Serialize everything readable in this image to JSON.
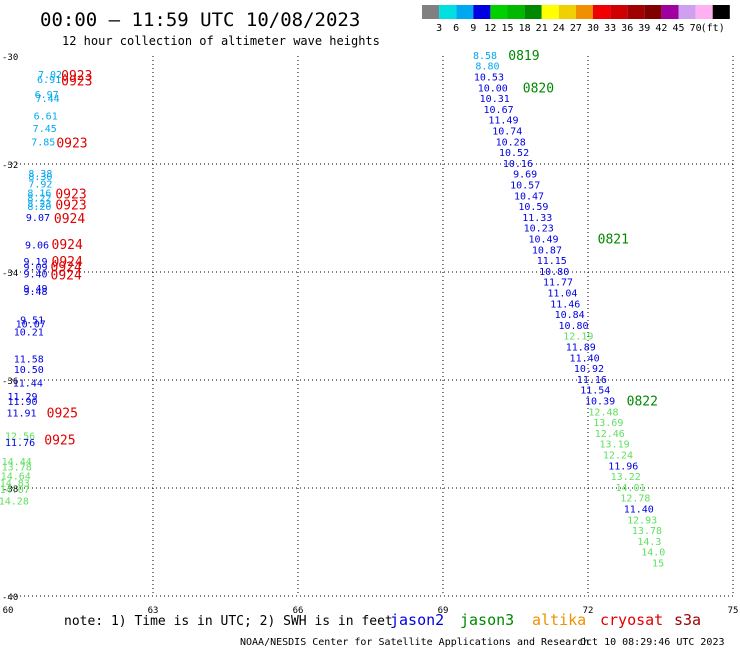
{
  "header": {
    "title": "00:00 – 11:59 UTC 10/08/2023",
    "subtitle": "12 hour collection of altimeter wave heights"
  },
  "legend": {
    "labels": [
      "3",
      "6",
      "9",
      "12",
      "15",
      "18",
      "21",
      "24",
      "27",
      "30",
      "33",
      "36",
      "39",
      "42",
      "45",
      "70",
      "(ft)"
    ],
    "colors": [
      "#808080",
      "#00e0e0",
      "#00a8f0",
      "#0000e0",
      "#00d000",
      "#00b800",
      "#008800",
      "#ffff00",
      "#f0d000",
      "#f09000",
      "#f00000",
      "#d00000",
      "#a00000",
      "#800000",
      "#a000a0",
      "#d0a0f0",
      "#ffb0f0",
      "#000000"
    ]
  },
  "axes": {
    "lon_labels": [
      "60",
      "63",
      "66",
      "69",
      "72",
      "75"
    ],
    "lat_labels": [
      "-30",
      "-32",
      "-34",
      "-36",
      "-38",
      "-40"
    ]
  },
  "wave_labels": [
    {
      "v": "7.02",
      "lon": 60.87,
      "lat": -30.33,
      "c": "#00a8f0"
    },
    {
      "v": "6.91",
      "lon": 60.85,
      "lat": -30.43,
      "c": "#00a8f0"
    },
    {
      "v": "6.97",
      "lon": 60.8,
      "lat": -30.7,
      "c": "#00a8f0"
    },
    {
      "v": "7.44",
      "lon": 60.82,
      "lat": -30.78,
      "c": "#00a8f0"
    },
    {
      "v": "6.61",
      "lon": 60.78,
      "lat": -31.1,
      "c": "#00a8f0"
    },
    {
      "v": "7.45",
      "lon": 60.76,
      "lat": -31.33,
      "c": "#00a8f0"
    },
    {
      "v": "7.85",
      "lon": 60.73,
      "lat": -31.58,
      "c": "#00a8f0"
    },
    {
      "v": "8.38",
      "lon": 60.67,
      "lat": -32.17,
      "c": "#00a8f0"
    },
    {
      "v": "8.30",
      "lon": 60.67,
      "lat": -32.22,
      "c": "#00a8f0"
    },
    {
      "v": "7.92",
      "lon": 60.67,
      "lat": -32.36,
      "c": "#00a8f0"
    },
    {
      "v": "8.16",
      "lon": 60.65,
      "lat": -32.53,
      "c": "#00a8f0"
    },
    {
      "v": "8.22",
      "lon": 60.65,
      "lat": -32.62,
      "c": "#00a8f0"
    },
    {
      "v": "8.23",
      "lon": 60.65,
      "lat": -32.72,
      "c": "#00a8f0"
    },
    {
      "v": "8.20",
      "lon": 60.65,
      "lat": -32.78,
      "c": "#00a8f0"
    },
    {
      "v": "9.07",
      "lon": 60.62,
      "lat": -32.98,
      "c": "#0000e0"
    },
    {
      "v": "9.06",
      "lon": 60.6,
      "lat": -33.49,
      "c": "#0000e0"
    },
    {
      "v": "9.19",
      "lon": 60.57,
      "lat": -33.8,
      "c": "#0000e0"
    },
    {
      "v": "9.09",
      "lon": 60.57,
      "lat": -33.9,
      "c": "#0000e0"
    },
    {
      "v": "9.40",
      "lon": 60.57,
      "lat": -34.03,
      "c": "#0000e0"
    },
    {
      "v": "9.49",
      "lon": 60.57,
      "lat": -34.3,
      "c": "#0000e0"
    },
    {
      "v": "9.48",
      "lon": 60.57,
      "lat": -34.35,
      "c": "#0000e0"
    },
    {
      "v": "9.51",
      "lon": 60.5,
      "lat": -34.88,
      "c": "#0000e0"
    },
    {
      "v": "10.07",
      "lon": 60.47,
      "lat": -34.95,
      "c": "#0000e0"
    },
    {
      "v": "10.21",
      "lon": 60.43,
      "lat": -35.1,
      "c": "#0000e0"
    },
    {
      "v": "11.58",
      "lon": 60.43,
      "lat": -35.6,
      "c": "#0000e0"
    },
    {
      "v": "10.50",
      "lon": 60.43,
      "lat": -35.8,
      "c": "#0000e0"
    },
    {
      "v": "11.44",
      "lon": 60.41,
      "lat": -36.05,
      "c": "#0000e0"
    },
    {
      "v": "11.29",
      "lon": 60.3,
      "lat": -36.3,
      "c": "#0000e0"
    },
    {
      "v": "11.90",
      "lon": 60.3,
      "lat": -36.39,
      "c": "#0000e0"
    },
    {
      "v": "11.91",
      "lon": 60.28,
      "lat": -36.6,
      "c": "#0000e0"
    },
    {
      "v": "12.56",
      "lon": 60.25,
      "lat": -37.03,
      "c": "#60e060"
    },
    {
      "v": "11.76",
      "lon": 60.25,
      "lat": -37.15,
      "c": "#0000e0"
    },
    {
      "v": "14.44",
      "lon": 60.18,
      "lat": -37.5,
      "c": "#60e060"
    },
    {
      "v": "13.78",
      "lon": 60.18,
      "lat": -37.6,
      "c": "#60e060"
    },
    {
      "v": "14.64",
      "lon": 60.16,
      "lat": -37.77,
      "c": "#60e060"
    },
    {
      "v": "14.83",
      "lon": 60.14,
      "lat": -37.9,
      "c": "#60e060"
    },
    {
      "v": "14.07",
      "lon": 60.14,
      "lat": -38.02,
      "c": "#60e060"
    },
    {
      "v": "14.28",
      "lon": 60.12,
      "lat": -38.23,
      "c": "#60e060"
    },
    {
      "v": "8.58",
      "lon": 69.87,
      "lat": -29.98,
      "c": "#00a8f0"
    },
    {
      "v": "8.80",
      "lon": 69.92,
      "lat": -30.18,
      "c": "#00a8f0"
    },
    {
      "v": "10.53",
      "lon": 69.95,
      "lat": -30.38,
      "c": "#0000e0"
    },
    {
      "v": "10.00",
      "lon": 70.03,
      "lat": -30.58,
      "c": "#0000e0"
    },
    {
      "v": "10.31",
      "lon": 70.07,
      "lat": -30.78,
      "c": "#0000e0"
    },
    {
      "v": "10.67",
      "lon": 70.15,
      "lat": -30.98,
      "c": "#0000e0"
    },
    {
      "v": "11.49",
      "lon": 70.25,
      "lat": -31.18,
      "c": "#0000e0"
    },
    {
      "v": "10.74",
      "lon": 70.33,
      "lat": -31.38,
      "c": "#0000e0"
    },
    {
      "v": "10.28",
      "lon": 70.4,
      "lat": -31.58,
      "c": "#0000e0"
    },
    {
      "v": "10.52",
      "lon": 70.47,
      "lat": -31.78,
      "c": "#0000e0"
    },
    {
      "v": "10.16",
      "lon": 70.55,
      "lat": -31.98,
      "c": "#0000e0"
    },
    {
      "v": "9.69",
      "lon": 70.7,
      "lat": -32.18,
      "c": "#0000e0"
    },
    {
      "v": "10.57",
      "lon": 70.7,
      "lat": -32.38,
      "c": "#0000e0"
    },
    {
      "v": "10.47",
      "lon": 70.78,
      "lat": -32.58,
      "c": "#0000e0"
    },
    {
      "v": "10.59",
      "lon": 70.87,
      "lat": -32.78,
      "c": "#0000e0"
    },
    {
      "v": "11.33",
      "lon": 70.95,
      "lat": -32.98,
      "c": "#0000e0"
    },
    {
      "v": "10.23",
      "lon": 70.98,
      "lat": -33.18,
      "c": "#0000e0"
    },
    {
      "v": "10.49",
      "lon": 71.08,
      "lat": -33.38,
      "c": "#0000e0"
    },
    {
      "v": "10.87",
      "lon": 71.15,
      "lat": -33.58,
      "c": "#0000e0"
    },
    {
      "v": "11.15",
      "lon": 71.25,
      "lat": -33.78,
      "c": "#0000e0"
    },
    {
      "v": "10.80",
      "lon": 71.3,
      "lat": -33.98,
      "c": "#0000e0"
    },
    {
      "v": "11.77",
      "lon": 71.38,
      "lat": -34.18,
      "c": "#0000e0"
    },
    {
      "v": "11.04",
      "lon": 71.47,
      "lat": -34.38,
      "c": "#0000e0"
    },
    {
      "v": "11.46",
      "lon": 71.53,
      "lat": -34.58,
      "c": "#0000e0"
    },
    {
      "v": "10.84",
      "lon": 71.62,
      "lat": -34.78,
      "c": "#0000e0"
    },
    {
      "v": "10.80",
      "lon": 71.7,
      "lat": -34.98,
      "c": "#0000e0"
    },
    {
      "v": "12.19",
      "lon": 71.8,
      "lat": -35.18,
      "c": "#60e060"
    },
    {
      "v": "11.89",
      "lon": 71.85,
      "lat": -35.38,
      "c": "#0000e0"
    },
    {
      "v": "11.40",
      "lon": 71.93,
      "lat": -35.58,
      "c": "#0000e0"
    },
    {
      "v": "10.92",
      "lon": 72.02,
      "lat": -35.78,
      "c": "#0000e0"
    },
    {
      "v": "11.16",
      "lon": 72.08,
      "lat": -35.98,
      "c": "#0000e0"
    },
    {
      "v": "11.54",
      "lon": 72.15,
      "lat": -36.18,
      "c": "#0000e0"
    },
    {
      "v": "10.39",
      "lon": 72.25,
      "lat": -36.38,
      "c": "#0000e0"
    },
    {
      "v": "12.48",
      "lon": 72.32,
      "lat": -36.58,
      "c": "#60e060"
    },
    {
      "v": "13.69",
      "lon": 72.42,
      "lat": -36.78,
      "c": "#60e060"
    },
    {
      "v": "12.46",
      "lon": 72.45,
      "lat": -36.98,
      "c": "#60e060"
    },
    {
      "v": "13.19",
      "lon": 72.55,
      "lat": -37.18,
      "c": "#60e060"
    },
    {
      "v": "12.24",
      "lon": 72.62,
      "lat": -37.38,
      "c": "#60e060"
    },
    {
      "v": "11.96",
      "lon": 72.73,
      "lat": -37.58,
      "c": "#0000e0"
    },
    {
      "v": "13.22",
      "lon": 72.78,
      "lat": -37.78,
      "c": "#60e060"
    },
    {
      "v": "14.01",
      "lon": 72.88,
      "lat": -37.98,
      "c": "#60e060"
    },
    {
      "v": "12.78",
      "lon": 72.98,
      "lat": -38.18,
      "c": "#60e060"
    },
    {
      "v": "11.40",
      "lon": 73.05,
      "lat": -38.38,
      "c": "#0000e0"
    },
    {
      "v": "12.93",
      "lon": 73.12,
      "lat": -38.58,
      "c": "#60e060"
    },
    {
      "v": "13.78",
      "lon": 73.22,
      "lat": -38.78,
      "c": "#60e060"
    },
    {
      "v": "14.3",
      "lon": 73.27,
      "lat": -38.98,
      "c": "#60e060"
    },
    {
      "v": "14.0",
      "lon": 73.35,
      "lat": -39.18,
      "c": "#60e060"
    },
    {
      "v": "15",
      "lon": 73.45,
      "lat": -39.38,
      "c": "#60e060"
    }
  ],
  "time_labels": [
    {
      "t": "0923",
      "lon": 61.1,
      "lat": -30.35,
      "c": "#e00000"
    },
    {
      "t": "0923",
      "lon": 61.1,
      "lat": -30.45,
      "c": "#e00000"
    },
    {
      "t": "0923",
      "lon": 61.0,
      "lat": -31.6,
      "c": "#e00000"
    },
    {
      "t": "0923",
      "lon": 60.98,
      "lat": -32.55,
      "c": "#e00000"
    },
    {
      "t": "0923",
      "lon": 60.98,
      "lat": -32.75,
      "c": "#e00000"
    },
    {
      "t": "0924",
      "lon": 60.95,
      "lat": -33.0,
      "c": "#e00000"
    },
    {
      "t": "0924",
      "lon": 60.9,
      "lat": -33.48,
      "c": "#e00000"
    },
    {
      "t": "0924",
      "lon": 60.9,
      "lat": -33.8,
      "c": "#e00000"
    },
    {
      "t": "0924",
      "lon": 60.88,
      "lat": -33.9,
      "c": "#e00000"
    },
    {
      "t": "0924",
      "lon": 60.88,
      "lat": -34.05,
      "c": "#e00000"
    },
    {
      "t": "0925",
      "lon": 60.8,
      "lat": -36.6,
      "c": "#e00000"
    },
    {
      "t": "0925",
      "lon": 60.75,
      "lat": -37.1,
      "c": "#e00000"
    },
    {
      "t": "0819",
      "lon": 70.35,
      "lat": -29.98,
      "c": "#008800"
    },
    {
      "t": "0820",
      "lon": 70.65,
      "lat": -30.58,
      "c": "#008800"
    },
    {
      "t": "0821",
      "lon": 72.2,
      "lat": -33.38,
      "c": "#008800"
    },
    {
      "t": "0822",
      "lon": 72.8,
      "lat": -36.38,
      "c": "#008800"
    }
  ],
  "footer": {
    "note": "note:  1) Time is in UTC; 2) SWH is in feet",
    "satellites": [
      {
        "name": "jason2",
        "color": "#0000e0"
      },
      {
        "name": "jason3",
        "color": "#008800"
      },
      {
        "name": "altika",
        "color": "#f09000"
      },
      {
        "name": "cryosat",
        "color": "#e00000"
      },
      {
        "name": "s3a",
        "color": "#a00000"
      }
    ],
    "credit": "NOAA/NESDIS Center for Satellite Applications and Research",
    "timestamp": "Oct 10 08:29:46 UTC 2023"
  }
}
